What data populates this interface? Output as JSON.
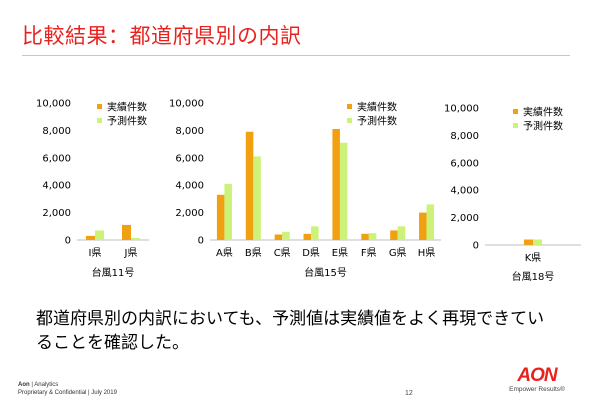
{
  "slide": {
    "title": "比較結果：都道府県別の内訳",
    "body": "都道府県別の内訳においても、予測値は実績値をよく再現できていることを確認した。",
    "page_number": "12",
    "footer": {
      "brand": "Aon",
      "line1_rest": " | Analytics",
      "line2": "Proprietary & Confidential | July 2019"
    },
    "logo": {
      "word": "AON",
      "tagline": "Empower Results®"
    }
  },
  "colors": {
    "actual": "#f0a010",
    "predicted": "#ccf27a",
    "accent": "#e8231f"
  },
  "chart_data": [
    {
      "type": "bar",
      "title": "",
      "xlabel": "台風11号",
      "ylabel": "",
      "categories": [
        "I県",
        "J県"
      ],
      "ylim": [
        0,
        10000
      ],
      "yticks": [
        "10,000",
        "8,000",
        "6,000",
        "4,000",
        "2,000",
        "0"
      ],
      "legend_position": "top-right",
      "grid": false,
      "series": [
        {
          "name": "実績件数",
          "values": [
            300,
            1100
          ]
        },
        {
          "name": "予測件数",
          "values": [
            700,
            150
          ]
        }
      ]
    },
    {
      "type": "bar",
      "title": "",
      "xlabel": "台風15号",
      "ylabel": "",
      "categories": [
        "A県",
        "B県",
        "C県",
        "D県",
        "E県",
        "F県",
        "G県",
        "H県"
      ],
      "ylim": [
        0,
        10000
      ],
      "yticks": [
        "10,000",
        "8,000",
        "6,000",
        "4,000",
        "2,000",
        "0"
      ],
      "legend_position": "top-right",
      "grid": false,
      "series": [
        {
          "name": "実績件数",
          "values": [
            3300,
            7900,
            400,
            450,
            8100,
            450,
            700,
            2000
          ]
        },
        {
          "name": "予測件数",
          "values": [
            4100,
            6100,
            600,
            1000,
            7100,
            500,
            1000,
            2600
          ]
        }
      ]
    },
    {
      "type": "bar",
      "title": "",
      "xlabel": "台風18号",
      "ylabel": "",
      "categories": [
        "K県"
      ],
      "ylim": [
        0,
        10000
      ],
      "yticks": [
        "10,000",
        "8,000",
        "6,000",
        "4,000",
        "2,000",
        "0"
      ],
      "legend_position": "top-right",
      "grid": false,
      "series": [
        {
          "name": "実績件数",
          "values": [
            400
          ]
        },
        {
          "name": "予測件数",
          "values": [
            400
          ]
        }
      ]
    }
  ]
}
